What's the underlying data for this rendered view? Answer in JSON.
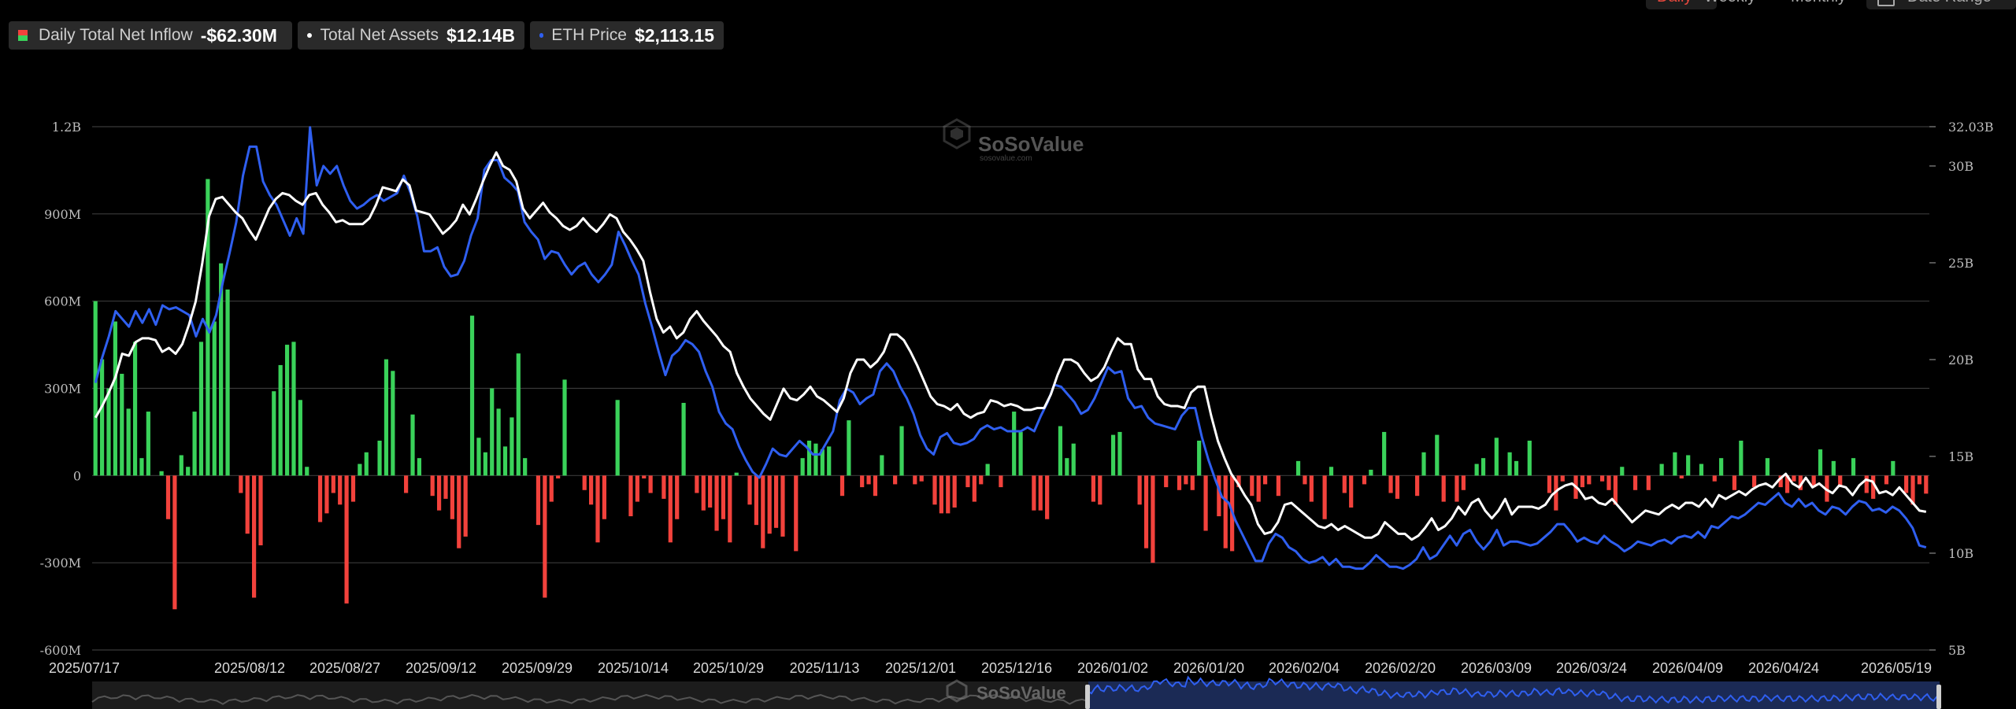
{
  "legend": {
    "inflow_label": "Daily Total Net Inflow",
    "inflow_value": "-$62.30M",
    "assets_label": "Total Net Assets",
    "assets_value": "$12.14B",
    "eth_label": "ETH Price",
    "eth_value": "$2,113.15"
  },
  "controls": {
    "daily": "Daily",
    "weekly": "Weekly",
    "monthly": "Monthly",
    "date_range": "Date Range"
  },
  "watermark": {
    "brand": "SoSoValue",
    "sub": "sosovalue.com"
  },
  "colors": {
    "positive": "#3ad25a",
    "negative": "#f2423c",
    "assets_line": "#ffffff",
    "eth_line": "#2f5ff0",
    "grid": "#3a3a3a",
    "active_tab": "#e8483d"
  },
  "chart_data": {
    "type": "bar",
    "title": "",
    "x_ticks": [
      "2025/07/17",
      "2025/08/12",
      "2025/08/27",
      "2025/09/12",
      "2025/09/29",
      "2025/10/14",
      "2025/10/29",
      "2025/11/13",
      "2025/12/01",
      "2025/12/16",
      "2026/01/02",
      "2026/01/20",
      "2026/02/04",
      "2026/02/20",
      "2026/03/09",
      "2026/03/24",
      "2026/04/09",
      "2026/04/24",
      "2026/05/19"
    ],
    "left_axis": {
      "ticks": [
        "1.2B",
        "900M",
        "600M",
        "300M",
        "0",
        "-300M",
        "-600M"
      ],
      "range": [
        -600,
        1200
      ],
      "unit": "M"
    },
    "right_axis": {
      "ticks": [
        "32.03B",
        "30B",
        "25B",
        "20B",
        "15B",
        "10B",
        "5B"
      ],
      "range": [
        5,
        32.03
      ],
      "unit": "B"
    },
    "series": [
      {
        "name": "Daily Total Net Inflow",
        "kind": "bar",
        "values": [
          600,
          400,
          300,
          530,
          350,
          230,
          460,
          60,
          220,
          0,
          15,
          -150,
          -460,
          70,
          30,
          220,
          460,
          1020,
          530,
          730,
          640,
          0,
          -60,
          -200,
          -420,
          -240,
          0,
          290,
          380,
          450,
          460,
          260,
          30,
          0,
          -160,
          -130,
          -60,
          -100,
          -440,
          -90,
          40,
          80,
          0,
          120,
          400,
          360,
          0,
          -60,
          210,
          60,
          0,
          -70,
          -120,
          -80,
          -150,
          -250,
          -210,
          550,
          130,
          80,
          300,
          230,
          100,
          200,
          420,
          60,
          0,
          -170,
          -420,
          -90,
          -10,
          330,
          0,
          0,
          -50,
          -100,
          -230,
          -150,
          0,
          260,
          0,
          -140,
          -90,
          -10,
          -60,
          0,
          -80,
          -230,
          -150,
          250,
          0,
          -60,
          -120,
          -110,
          -190,
          -150,
          -230,
          10,
          0,
          -100,
          -170,
          -250,
          -200,
          -180,
          -210,
          0,
          -260,
          60,
          120,
          110,
          90,
          100,
          0,
          -70,
          190,
          0,
          -40,
          -30,
          -70,
          70,
          0,
          -30,
          170,
          0,
          -30,
          -20,
          0,
          -100,
          -130,
          -130,
          -110,
          0,
          -40,
          -90,
          -30,
          40,
          0,
          -40,
          0,
          220,
          150,
          0,
          -120,
          -120,
          -150,
          0,
          170,
          60,
          110,
          0,
          0,
          -90,
          -100,
          0,
          140,
          150,
          0,
          0,
          -100,
          -250,
          -300,
          0,
          -40,
          0,
          -50,
          -30,
          -50,
          120,
          -190,
          0,
          -140,
          -250,
          -260,
          -40,
          0,
          -70,
          -90,
          -30,
          0,
          -70,
          0,
          0,
          50,
          -30,
          -90,
          0,
          -150,
          30,
          0,
          -60,
          -110,
          0,
          -30,
          20,
          0,
          150,
          -60,
          -80,
          0,
          0,
          -70,
          80,
          0,
          140,
          -90,
          0,
          -90,
          -50,
          0,
          40,
          60,
          0,
          130,
          0,
          80,
          50,
          0,
          120,
          0,
          0,
          -60,
          -120,
          -20,
          0,
          -80,
          -40,
          -30,
          0,
          -20,
          -50,
          -100,
          30,
          0,
          -50,
          0,
          -50,
          0,
          40,
          0,
          80,
          -10,
          70,
          0,
          40,
          0,
          -20,
          60,
          0,
          -50,
          120,
          0,
          -40,
          0,
          60,
          0,
          -40,
          -60,
          -20,
          -50,
          0,
          -40,
          90,
          -90,
          50,
          -40,
          0,
          60,
          0,
          -60,
          -80,
          0,
          -30,
          50,
          0,
          -60,
          -100,
          -30,
          -62.3
        ]
      },
      {
        "name": "Total Net Assets",
        "kind": "line",
        "unit": "B",
        "values": [
          17.0,
          17.6,
          18.3,
          19.1,
          20.3,
          20.2,
          20.9,
          21.1,
          21.1,
          21.0,
          20.4,
          20.6,
          20.3,
          20.8,
          21.8,
          23.0,
          25.0,
          27.4,
          28.3,
          28.4,
          28.0,
          27.6,
          27.3,
          26.7,
          26.2,
          27.0,
          27.8,
          28.3,
          28.6,
          28.5,
          28.2,
          28.0,
          28.5,
          28.6,
          28.0,
          27.6,
          27.1,
          27.2,
          27.0,
          27.0,
          27.0,
          27.3,
          28.0,
          28.9,
          28.8,
          28.7,
          29.3,
          29.0,
          27.7,
          27.6,
          27.5,
          27.0,
          26.5,
          26.8,
          27.2,
          28.0,
          27.5,
          28.3,
          29.2,
          30.0,
          30.7,
          30.0,
          29.8,
          29.2,
          27.8,
          27.3,
          27.7,
          28.1,
          27.6,
          27.3,
          26.9,
          26.7,
          26.9,
          27.3,
          26.9,
          26.6,
          27.0,
          27.5,
          27.3,
          26.6,
          26.2,
          25.7,
          25.1,
          23.5,
          22.1,
          21.4,
          21.7,
          21.1,
          21.4,
          22.1,
          22.5,
          22.0,
          21.6,
          21.2,
          20.7,
          20.4,
          19.3,
          18.6,
          18.0,
          17.6,
          17.2,
          16.9,
          17.7,
          18.5,
          18.0,
          17.9,
          18.2,
          18.6,
          18.1,
          17.9,
          17.6,
          17.3,
          18.0,
          19.3,
          20.0,
          20.0,
          19.6,
          19.9,
          20.4,
          21.3,
          21.3,
          21.0,
          20.4,
          19.7,
          18.9,
          18.1,
          17.7,
          17.6,
          17.4,
          17.7,
          17.2,
          17.0,
          17.2,
          17.3,
          17.9,
          17.8,
          17.6,
          17.7,
          17.6,
          17.4,
          17.4,
          17.5,
          17.5,
          18.2,
          19.2,
          20.0,
          20.0,
          19.8,
          19.3,
          18.9,
          19.1,
          19.6,
          20.4,
          21.1,
          20.8,
          20.8,
          19.5,
          19.0,
          19.0,
          18.1,
          17.7,
          17.6,
          17.6,
          17.5,
          18.3,
          18.6,
          18.6,
          17.1,
          15.8,
          14.9,
          14.1,
          13.6,
          13.0,
          12.5,
          11.5,
          11.0,
          11.1,
          11.6,
          12.5,
          12.6,
          12.3,
          12.0,
          11.7,
          11.4,
          11.3,
          11.5,
          11.2,
          11.4,
          11.2,
          11.0,
          10.8,
          10.8,
          11.0,
          11.6,
          11.3,
          11.0,
          11.0,
          10.7,
          10.9,
          11.3,
          11.8,
          11.2,
          11.4,
          11.8,
          12.4,
          12.0,
          12.6,
          12.8,
          12.2,
          11.8,
          12.2,
          12.8,
          12.0,
          12.4,
          12.4,
          12.4,
          12.3,
          12.5,
          13.0,
          13.3,
          13.5,
          13.6,
          13.3,
          12.8,
          12.9,
          12.6,
          12.5,
          12.8,
          12.4,
          12.0,
          11.6,
          11.9,
          12.2,
          12.1,
          12.0,
          12.3,
          12.5,
          12.3,
          12.6,
          12.6,
          12.4,
          12.8,
          12.4,
          13.0,
          12.8,
          13.0,
          13.2,
          13.0,
          13.3,
          13.5,
          13.6,
          13.4,
          13.8,
          14.1,
          13.6,
          13.4,
          13.9,
          13.4,
          13.6,
          13.3,
          13.1,
          13.5,
          13.4,
          13.0,
          13.5,
          13.8,
          13.7,
          13.1,
          13.2,
          13.0,
          13.4,
          13.0,
          12.6,
          12.2,
          12.14
        ]
      },
      {
        "name": "ETH Price",
        "kind": "line",
        "values": [
          18.8,
          20.1,
          21.2,
          22.5,
          22.1,
          21.7,
          22.5,
          21.9,
          22.6,
          21.8,
          22.8,
          22.6,
          22.7,
          22.5,
          22.3,
          21.2,
          22.1,
          21.4,
          22.3,
          24.0,
          25.5,
          27.1,
          29.5,
          31.0,
          31.0,
          29.2,
          28.5,
          28.0,
          27.2,
          26.4,
          27.3,
          26.5,
          32.0,
          29.0,
          30.0,
          29.6,
          30.0,
          29.0,
          28.2,
          27.8,
          28.0,
          28.3,
          28.5,
          28.2,
          28.4,
          28.6,
          29.5,
          28.6,
          27.4,
          25.6,
          25.6,
          25.8,
          24.8,
          24.3,
          24.4,
          25.1,
          26.4,
          27.3,
          29.8,
          30.3,
          30.3,
          29.4,
          29.1,
          28.7,
          27.1,
          26.6,
          26.2,
          25.2,
          25.6,
          25.5,
          24.9,
          24.4,
          24.8,
          25.0,
          24.4,
          24.0,
          24.4,
          24.9,
          26.6,
          25.9,
          25.1,
          24.4,
          22.9,
          21.7,
          20.4,
          19.2,
          20.2,
          20.5,
          21.0,
          20.8,
          20.4,
          19.4,
          18.6,
          17.3,
          16.7,
          16.4,
          15.5,
          14.8,
          14.2,
          13.9,
          14.6,
          15.4,
          15.1,
          15.0,
          15.4,
          15.8,
          15.5,
          15.1,
          15.1,
          15.7,
          16.3,
          17.9,
          18.5,
          18.3,
          17.7,
          18.0,
          18.2,
          19.4,
          19.8,
          19.4,
          18.6,
          18.0,
          17.2,
          16.1,
          15.4,
          15.1,
          16.0,
          16.2,
          15.7,
          15.6,
          15.7,
          15.9,
          16.4,
          16.6,
          16.4,
          16.5,
          16.3,
          16.3,
          16.3,
          16.5,
          16.3,
          17.1,
          17.8,
          18.7,
          18.6,
          18.2,
          17.8,
          17.2,
          17.4,
          18.0,
          18.8,
          19.6,
          19.3,
          19.4,
          18.0,
          17.5,
          17.6,
          17.0,
          16.7,
          16.6,
          16.5,
          16.4,
          17.1,
          17.5,
          17.5,
          16.0,
          14.8,
          13.8,
          12.9,
          12.6,
          11.7,
          11.0,
          10.3,
          9.6,
          9.6,
          10.5,
          11.0,
          10.8,
          10.3,
          10.1,
          9.7,
          9.5,
          9.6,
          9.8,
          9.4,
          9.7,
          9.3,
          9.3,
          9.2,
          9.2,
          9.5,
          9.9,
          9.6,
          9.3,
          9.3,
          9.2,
          9.4,
          9.7,
          10.3,
          9.7,
          9.9,
          10.4,
          10.9,
          10.4,
          11.0,
          11.2,
          10.6,
          10.2,
          10.6,
          11.2,
          10.4,
          10.6,
          10.6,
          10.5,
          10.4,
          10.5,
          10.8,
          11.1,
          11.5,
          11.5,
          11.1,
          10.6,
          10.8,
          10.6,
          10.5,
          10.9,
          10.6,
          10.4,
          10.1,
          10.3,
          10.6,
          10.5,
          10.4,
          10.6,
          10.7,
          10.5,
          10.8,
          10.9,
          10.8,
          11.1,
          10.8,
          11.4,
          11.3,
          11.6,
          11.9,
          11.8,
          12.0,
          12.3,
          12.6,
          12.5,
          12.8,
          13.1,
          12.6,
          12.4,
          12.8,
          12.4,
          12.6,
          12.2,
          12.0,
          12.4,
          12.3,
          12.0,
          12.4,
          12.7,
          12.6,
          12.2,
          12.3,
          12.1,
          12.4,
          12.2,
          11.8,
          11.3,
          10.4,
          10.3
        ]
      }
    ]
  }
}
